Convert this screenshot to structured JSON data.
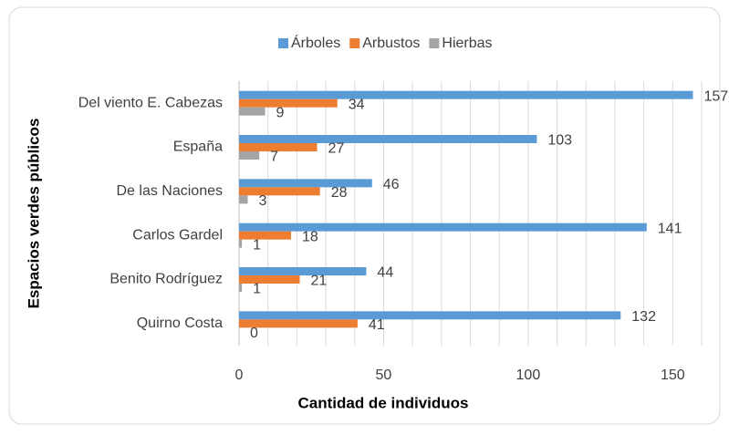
{
  "chart_data": {
    "type": "barh",
    "xlabel": "Cantidad de individuos",
    "ylabel": "Espacios verdes públicos",
    "categories": [
      "Del viento E. Cabezas",
      "España",
      "De las Naciones",
      "Carlos Gardel",
      "Benito Rodríguez",
      "Quirno Costa"
    ],
    "series": [
      {
        "name": "Árboles",
        "color": "#5b9bd5",
        "values": [
          157,
          103,
          46,
          141,
          44,
          132
        ]
      },
      {
        "name": "Arbustos",
        "color": "#ed7d31",
        "values": [
          34,
          27,
          28,
          18,
          21,
          41
        ]
      },
      {
        "name": "Hierbas",
        "color": "#a5a5a5",
        "values": [
          9,
          7,
          3,
          1,
          1,
          0
        ]
      }
    ],
    "xlim": [
      0,
      160
    ],
    "xticks": [
      0,
      50,
      100,
      150
    ],
    "xgridlines": [
      0,
      10,
      20,
      30,
      40,
      50,
      60,
      70,
      80,
      90,
      100,
      110,
      120,
      130,
      140,
      150,
      160
    ],
    "grid": true,
    "legend": "top"
  }
}
